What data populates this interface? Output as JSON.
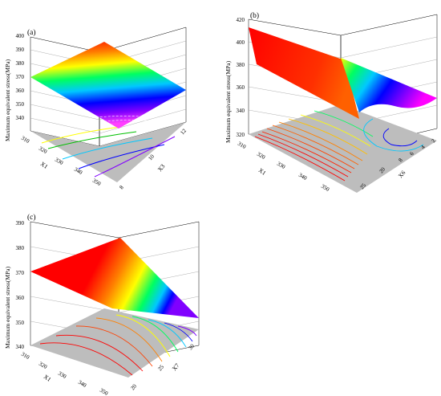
{
  "figure": {
    "panels": [
      {
        "label": "(a)",
        "zlabel": "Maximum equivalent stress(MPa)",
        "zticks": [
          "400",
          "390",
          "380",
          "370",
          "360",
          "350",
          "340"
        ],
        "x1_name": "X1",
        "x1_ticks": [
          "310",
          "320",
          "330",
          "340",
          "350"
        ],
        "x2_name": "X3",
        "x2_ticks": [
          "8",
          "10",
          "12"
        ]
      },
      {
        "label": "(b)",
        "zlabel": "Maximum equivalent stress(MPa)",
        "zticks": [
          "420",
          "400",
          "380",
          "360",
          "340",
          "320"
        ],
        "x1_name": "X1",
        "x1_ticks": [
          "310",
          "320",
          "330",
          "340",
          "350"
        ],
        "x2_name": "X6",
        "x2_ticks": [
          "2",
          "2",
          "20",
          "25"
        ],
        "x2_extra_ticks": [
          "4",
          "6",
          "8"
        ]
      },
      {
        "label": "(c)",
        "zlabel": "Maximum equivalent stress(MPa)",
        "zticks": [
          "390",
          "380",
          "370",
          "360",
          "350",
          "340"
        ],
        "x1_name": "X1",
        "x1_ticks": [
          "310",
          "320",
          "330",
          "340",
          "350"
        ],
        "x2_name": "X7",
        "x2_ticks": [
          "20",
          "25",
          "30"
        ]
      }
    ]
  },
  "chart_data": [
    {
      "type": "surface",
      "title": "(a)",
      "zlabel": "Maximum equivalent stress(MPa)",
      "xlabel": "X1",
      "ylabel": "X3",
      "x_range": [
        310,
        350
      ],
      "y_range": [
        8,
        12
      ],
      "zlim": [
        340,
        400
      ],
      "surface_z_range": [
        352,
        380
      ],
      "contour_projection": true
    },
    {
      "type": "surface",
      "title": "(b)",
      "zlabel": "Maximum equivalent stress(MPa)",
      "xlabel": "X1",
      "ylabel": "X6",
      "x_range": [
        310,
        350
      ],
      "y_range": [
        2,
        25
      ],
      "zlim": [
        320,
        420
      ],
      "surface_z_range": [
        344,
        418
      ],
      "contour_projection": true
    },
    {
      "type": "surface",
      "title": "(c)",
      "zlabel": "Maximum equivalent stress(MPa)",
      "xlabel": "X1",
      "ylabel": "X7",
      "x_range": [
        310,
        350
      ],
      "y_range": [
        20,
        30
      ],
      "zlim": [
        340,
        390
      ],
      "surface_z_range": [
        352,
        384
      ],
      "contour_projection": true
    }
  ],
  "colors": {
    "colormap": [
      "#8000ff",
      "#0000ff",
      "#00c8ff",
      "#00ff60",
      "#ffff00",
      "#ff8000",
      "#ff0000"
    ],
    "floor": "#bdbdbd",
    "grid": "#9a9a9a"
  }
}
